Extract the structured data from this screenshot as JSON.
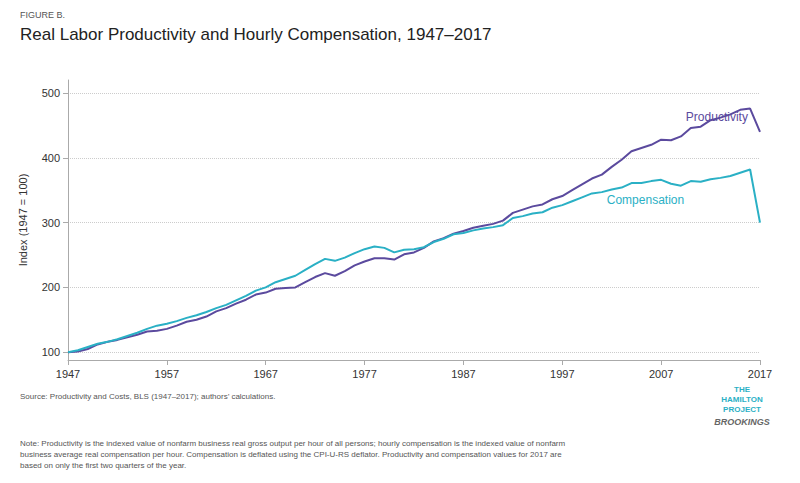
{
  "chart_data": {
    "type": "line",
    "figure_label": "FIGURE B.",
    "title": "Real Labor Productivity and Hourly Compensation, 1947–2017",
    "ylabel": "Index (1947 = 100)",
    "x": [
      1947,
      1948,
      1949,
      1950,
      1951,
      1952,
      1953,
      1954,
      1955,
      1956,
      1957,
      1958,
      1959,
      1960,
      1961,
      1962,
      1963,
      1964,
      1965,
      1966,
      1967,
      1968,
      1969,
      1970,
      1971,
      1972,
      1973,
      1974,
      1975,
      1976,
      1977,
      1978,
      1979,
      1980,
      1981,
      1982,
      1983,
      1984,
      1985,
      1986,
      1987,
      1988,
      1989,
      1990,
      1991,
      1992,
      1993,
      1994,
      1995,
      1996,
      1997,
      1998,
      1999,
      2000,
      2001,
      2002,
      2003,
      2004,
      2005,
      2006,
      2007,
      2008,
      2009,
      2010,
      2011,
      2012,
      2013,
      2014,
      2015,
      2016,
      2017
    ],
    "series": [
      {
        "name": "Productivity",
        "color": "#5b4a9e",
        "values": [
          100,
          101,
          105,
          112,
          116,
          119,
          123,
          127,
          132,
          133,
          136,
          141,
          147,
          150,
          155,
          163,
          168,
          175,
          181,
          189,
          192,
          198,
          199,
          200,
          208,
          216,
          222,
          218,
          225,
          234,
          240,
          245,
          245,
          243,
          251,
          254,
          261,
          271,
          276,
          283,
          287,
          292,
          295,
          298,
          303,
          315,
          320,
          325,
          328,
          336,
          341,
          350,
          359,
          368,
          374,
          386,
          397,
          410,
          415,
          420,
          428,
          427,
          433,
          446,
          448,
          458,
          462,
          467,
          474,
          476,
          440
        ]
      },
      {
        "name": "Compensation",
        "color": "#2ab0c5",
        "values": [
          100,
          103,
          108,
          113,
          116,
          120,
          125,
          130,
          136,
          141,
          144,
          148,
          153,
          157,
          162,
          168,
          173,
          180,
          187,
          195,
          200,
          208,
          213,
          218,
          227,
          236,
          244,
          241,
          246,
          253,
          259,
          263,
          261,
          254,
          258,
          259,
          262,
          270,
          275,
          282,
          284,
          288,
          291,
          293,
          296,
          307,
          310,
          314,
          316,
          323,
          327,
          333,
          339,
          345,
          347,
          351,
          354,
          361,
          361,
          364,
          366,
          360,
          357,
          364,
          363,
          367,
          369,
          372,
          377,
          382,
          300
        ]
      }
    ],
    "xlim": [
      1947,
      2017
    ],
    "xticks": [
      1947,
      1957,
      1967,
      1977,
      1987,
      1997,
      2007,
      2017
    ],
    "ylim": [
      88,
      520
    ],
    "yticks": [
      100,
      200,
      300,
      400,
      500
    ],
    "grid": "y",
    "annotations": [
      {
        "text": "Productivity",
        "x": 2009.5,
        "y": 453,
        "color": "#5b4a9e"
      },
      {
        "text": "Compensation",
        "x": 2001.5,
        "y": 326,
        "color": "#2ab0c5"
      }
    ],
    "source": "Source: Productivity and Costs, BLS (1947–2017); authors’ calculations.",
    "note": "Note: Productivity is the indexed value of nonfarm business real gross output per hour of all persons; hourly compensation is the indexed value of nonfarm\nbusiness average real compensation per hour. Compensation is deflated using the CPI-U-RS deflator. Productivity and compensation values for 2017 are\nbased on only the first two quarters of the year.",
    "credits": [
      {
        "text": "THE\nHAMILTON\nPROJECT",
        "color": "#2ab0c5"
      },
      {
        "text": "BROOKINGS",
        "color": "#666666"
      }
    ]
  }
}
